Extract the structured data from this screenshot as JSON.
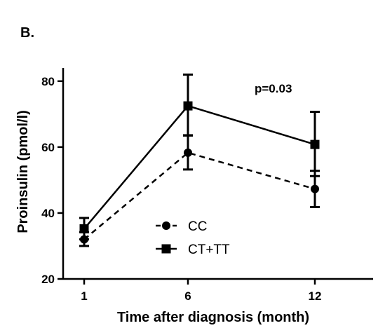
{
  "panel_label": "B.",
  "chart_data": {
    "type": "line",
    "xlabel": "Time after diagnosis (month)",
    "ylabel": "Proinsulin (pmol/l)",
    "categories": [
      "1",
      "6",
      "12"
    ],
    "ylim": [
      20,
      84
    ],
    "yticks": [
      20,
      40,
      60,
      80
    ],
    "grid": false,
    "legend_position": "lower-center",
    "annotation": "p=0.03",
    "series": [
      {
        "name": "CC",
        "marker": "circle",
        "line_style": "dashed",
        "color": "#000000",
        "values": [
          32,
          58.3,
          47.3
        ],
        "error_low": [
          30,
          53.2,
          41.8
        ],
        "error_high": [
          34.2,
          63.6,
          52.8
        ]
      },
      {
        "name": "CT+TT",
        "marker": "square",
        "line_style": "solid",
        "color": "#000000",
        "values": [
          35.2,
          72.5,
          60.8
        ],
        "error_low": [
          32,
          63.5,
          51.2
        ],
        "error_high": [
          38.5,
          82,
          70.7
        ]
      }
    ]
  }
}
